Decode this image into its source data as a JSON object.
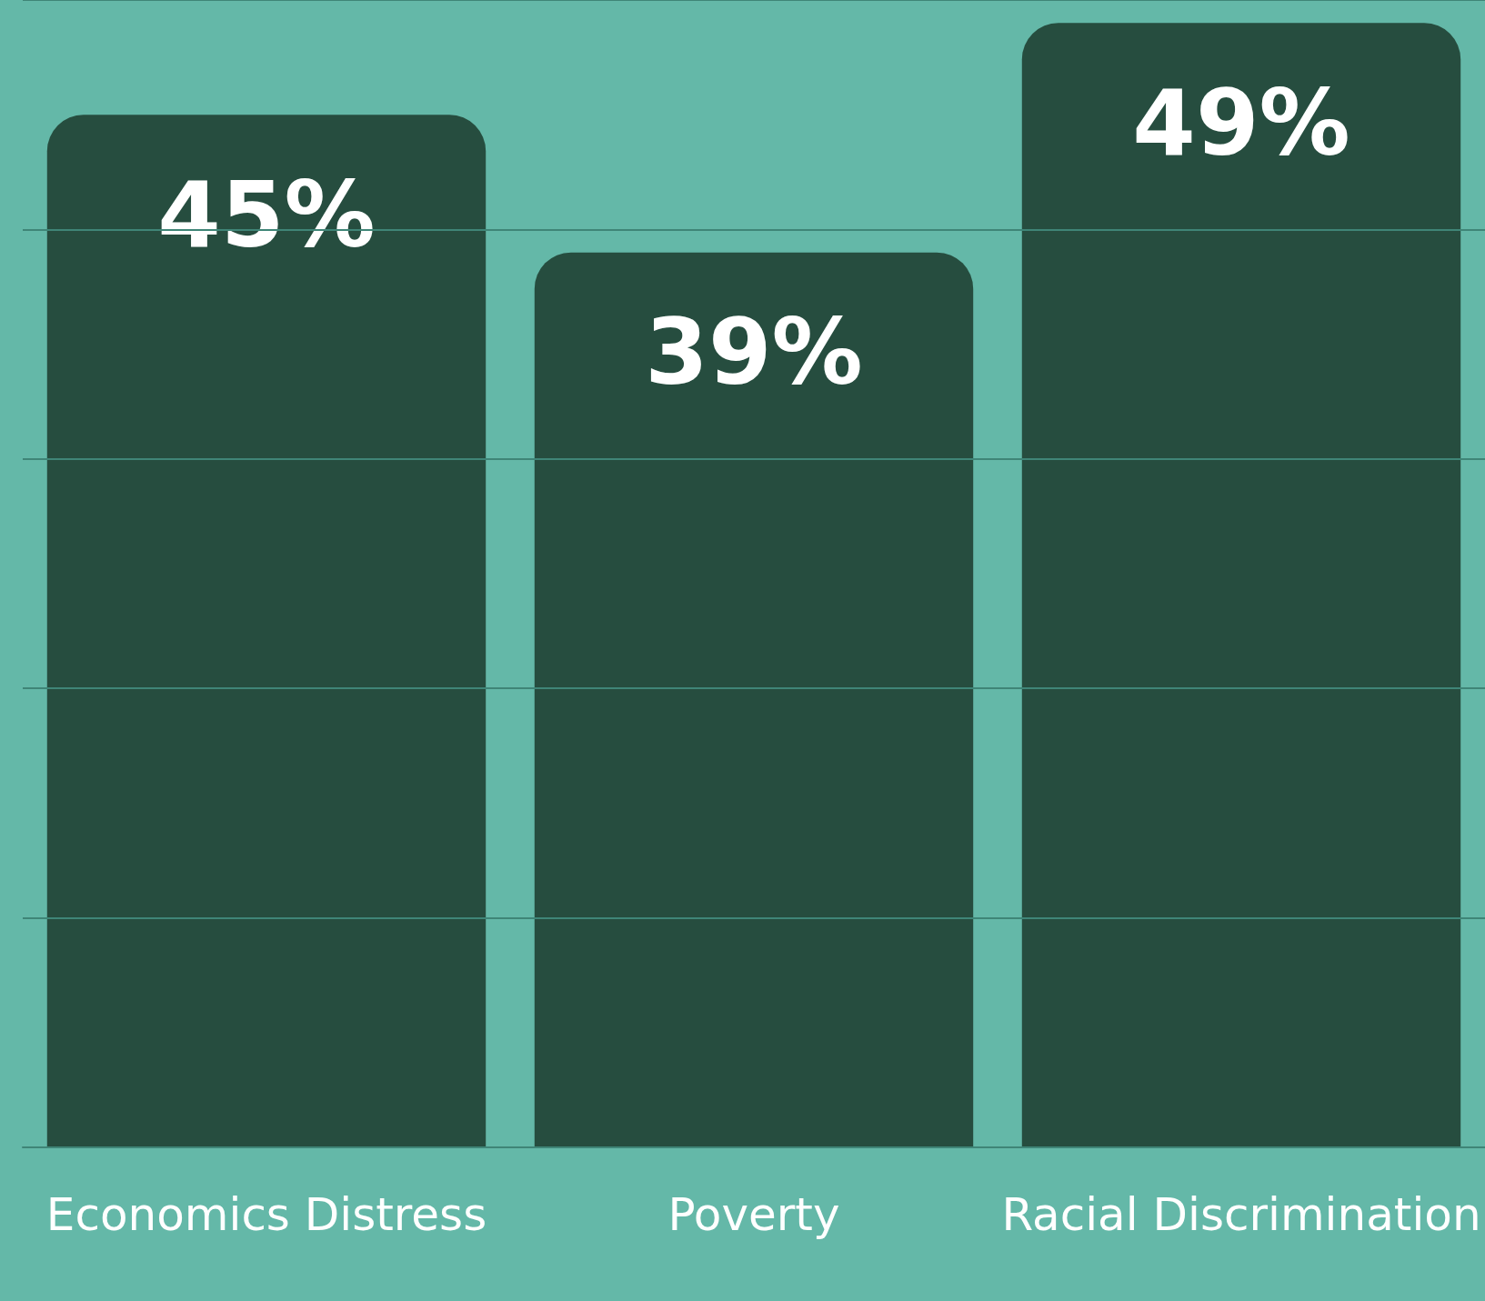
{
  "chart_data": {
    "type": "bar",
    "categories": [
      "Economics Distress",
      "Poverty",
      "Racial Discrimination"
    ],
    "values": [
      45,
      39,
      49
    ],
    "color": "#264d3f",
    "value_labels": [
      "45%",
      "39%",
      "49%"
    ],
    "ylim": [
      0,
      50
    ],
    "yticks": [
      {
        "value": 0,
        "label": null
      },
      {
        "value": 10,
        "label": null
      },
      {
        "value": 20,
        "label": null
      },
      {
        "value": 30,
        "label": null
      },
      {
        "value": 40,
        "label": null
      },
      {
        "value": 50,
        "label": null
      }
    ],
    "grid": "y",
    "tick_labels": "x"
  }
}
